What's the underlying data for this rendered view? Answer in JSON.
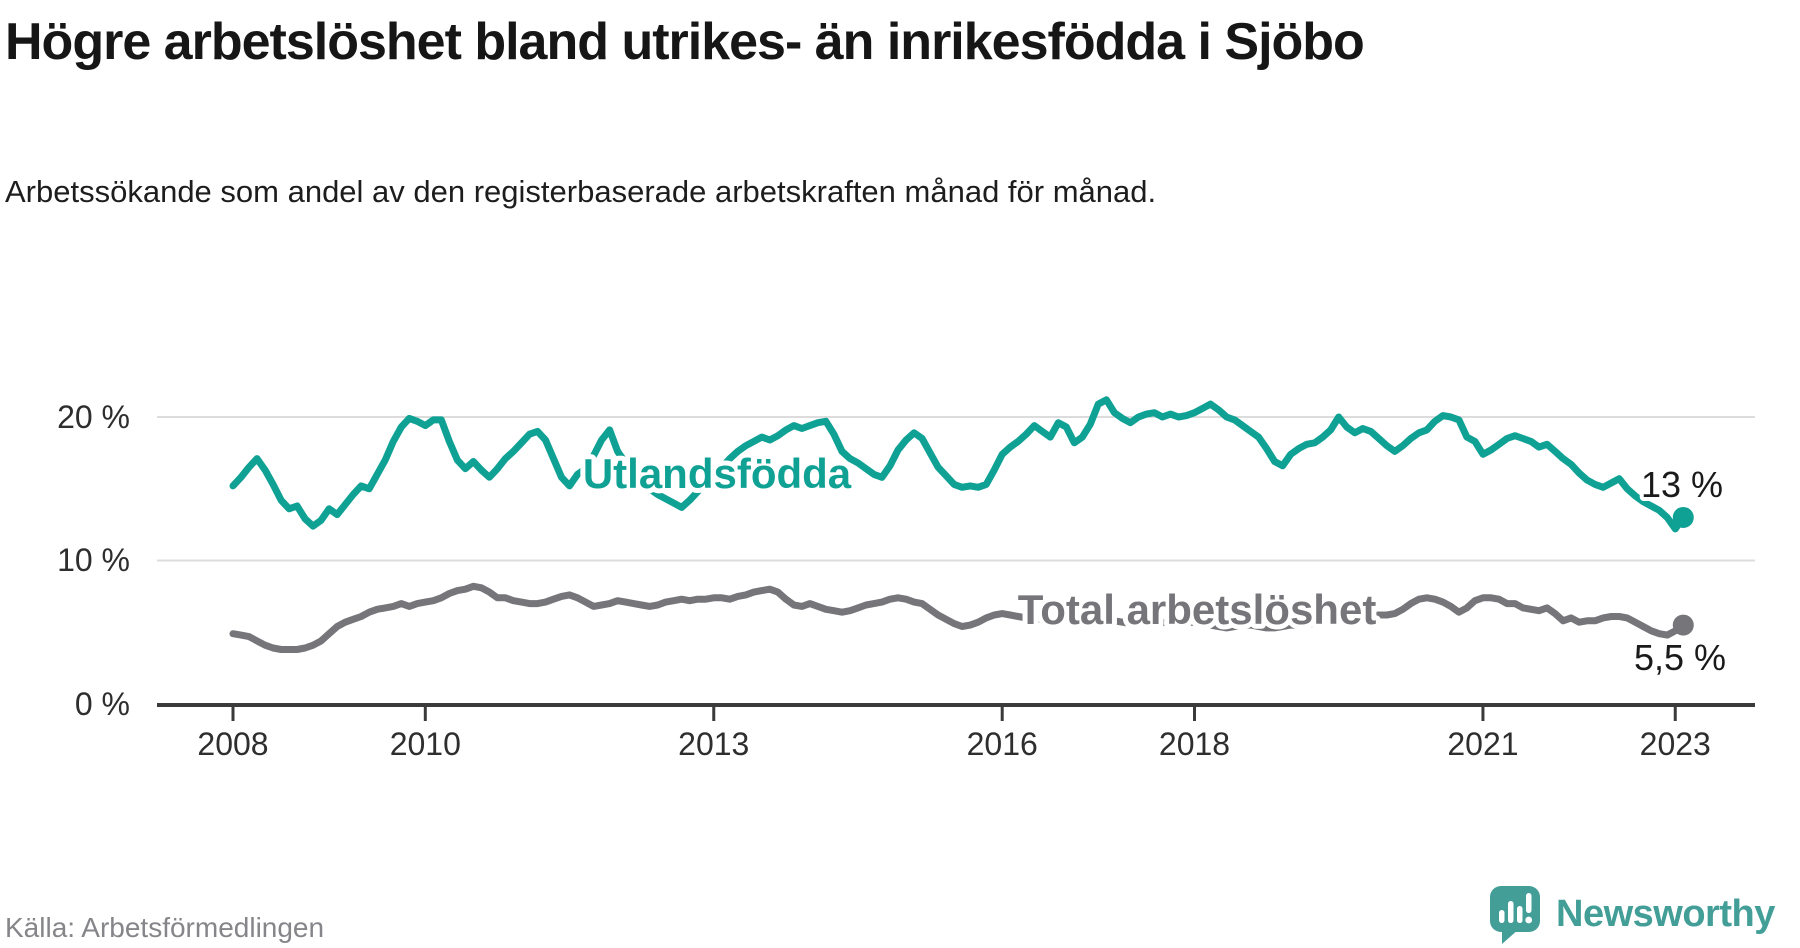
{
  "header": {
    "title": "Högre arbetslöshet bland utrikes- än inrikesfödda i Sjöbo",
    "subtitle": "Arbetssökande som andel av den registerbaserade arbetskraften månad för månad."
  },
  "chart_data": {
    "type": "line",
    "frequency": "monthly",
    "x_start": "2008-01",
    "x_end": "2023-02",
    "unit": "%",
    "grid": "horizontal",
    "legend_position": "inline-labels",
    "ylim": [
      0,
      22
    ],
    "yticks": [
      0,
      10,
      20
    ],
    "yticklabels": [
      "0 %",
      "10 %",
      "20 %"
    ],
    "xticks": [
      2008,
      2010,
      2013,
      2016,
      2018,
      2021,
      2023
    ],
    "series": [
      {
        "name": "Utlandsfödda",
        "color": "#10a195",
        "end_label": "13 %",
        "end_value": 13,
        "values": [
          15.2,
          15.8,
          16.5,
          17.1,
          16.3,
          15.3,
          14.2,
          13.6,
          13.8,
          12.9,
          12.4,
          12.8,
          13.6,
          13.2,
          13.9,
          14.6,
          15.2,
          15.0,
          16.0,
          17.0,
          18.3,
          19.3,
          19.9,
          19.7,
          19.4,
          19.8,
          19.8,
          18.3,
          17.0,
          16.4,
          16.9,
          16.3,
          15.8,
          16.4,
          17.1,
          17.6,
          18.2,
          18.8,
          19.0,
          18.4,
          17.1,
          15.8,
          15.2,
          16.0,
          16.4,
          17.3,
          18.4,
          19.1,
          17.6,
          16.8,
          16.1,
          15.5,
          15.0,
          14.6,
          14.3,
          14.0,
          13.7,
          14.2,
          14.8,
          15.4,
          15.9,
          16.5,
          17.1,
          17.6,
          18.0,
          18.3,
          18.6,
          18.4,
          18.7,
          19.1,
          19.4,
          19.2,
          19.4,
          19.6,
          19.7,
          18.8,
          17.6,
          17.1,
          16.8,
          16.4,
          16.0,
          15.8,
          16.6,
          17.7,
          18.4,
          18.9,
          18.5,
          17.5,
          16.5,
          15.9,
          15.3,
          15.1,
          15.2,
          15.1,
          15.3,
          16.3,
          17.4,
          17.9,
          18.3,
          18.8,
          19.4,
          19.0,
          18.6,
          19.6,
          19.3,
          18.2,
          18.6,
          19.5,
          20.9,
          21.2,
          20.3,
          19.9,
          19.6,
          20.0,
          20.2,
          20.3,
          20.0,
          20.2,
          20.0,
          20.1,
          20.3,
          20.6,
          20.9,
          20.5,
          20.0,
          19.8,
          19.4,
          19.0,
          18.6,
          17.8,
          16.9,
          16.6,
          17.4,
          17.8,
          18.1,
          18.2,
          18.6,
          19.1,
          20.0,
          19.3,
          18.9,
          19.2,
          19.0,
          18.5,
          18.0,
          17.6,
          18.0,
          18.5,
          18.9,
          19.1,
          19.7,
          20.1,
          20.0,
          19.8,
          18.6,
          18.3,
          17.4,
          17.7,
          18.1,
          18.5,
          18.7,
          18.5,
          18.3,
          17.9,
          18.1,
          17.6,
          17.1,
          16.7,
          16.1,
          15.6,
          15.3,
          15.1,
          15.4,
          15.7,
          15.0,
          14.5,
          14.1,
          13.8,
          13.5,
          13.0,
          12.2,
          13.0
        ]
      },
      {
        "name": "Total arbetslöshet",
        "color": "#75757a",
        "end_label": "5,5 %",
        "end_value": 5.5,
        "values": [
          4.9,
          4.8,
          4.7,
          4.4,
          4.1,
          3.9,
          3.8,
          3.8,
          3.8,
          3.9,
          4.1,
          4.4,
          4.9,
          5.4,
          5.7,
          5.9,
          6.1,
          6.4,
          6.6,
          6.7,
          6.8,
          7.0,
          6.8,
          7.0,
          7.1,
          7.2,
          7.4,
          7.7,
          7.9,
          8.0,
          8.2,
          8.1,
          7.8,
          7.4,
          7.4,
          7.2,
          7.1,
          7.0,
          7.0,
          7.1,
          7.3,
          7.5,
          7.6,
          7.4,
          7.1,
          6.8,
          6.9,
          7.0,
          7.2,
          7.1,
          7.0,
          6.9,
          6.8,
          6.9,
          7.1,
          7.2,
          7.3,
          7.2,
          7.3,
          7.3,
          7.4,
          7.4,
          7.3,
          7.5,
          7.6,
          7.8,
          7.9,
          8.0,
          7.8,
          7.3,
          6.9,
          6.8,
          7.0,
          6.8,
          6.6,
          6.5,
          6.4,
          6.5,
          6.7,
          6.9,
          7.0,
          7.1,
          7.3,
          7.4,
          7.3,
          7.1,
          7.0,
          6.6,
          6.2,
          5.9,
          5.6,
          5.4,
          5.5,
          5.7,
          6.0,
          6.2,
          6.3,
          6.2,
          6.1,
          6.0,
          5.9,
          5.9,
          6.0,
          6.0,
          5.9,
          5.8,
          5.8,
          5.9,
          5.9,
          5.9,
          5.8,
          5.7,
          5.6,
          5.7,
          5.8,
          5.8,
          5.7,
          5.6,
          5.6,
          5.7,
          5.7,
          5.6,
          5.5,
          5.4,
          5.3,
          5.4,
          5.5,
          5.5,
          5.4,
          5.3,
          5.3,
          5.4,
          5.5,
          5.5,
          5.6,
          5.6,
          5.7,
          5.8,
          6.0,
          6.0,
          5.9,
          6.0,
          6.1,
          6.2,
          6.2,
          6.3,
          6.6,
          7.0,
          7.3,
          7.4,
          7.3,
          7.1,
          6.8,
          6.4,
          6.7,
          7.2,
          7.4,
          7.4,
          7.3,
          7.0,
          7.0,
          6.7,
          6.6,
          6.5,
          6.7,
          6.3,
          5.8,
          6.0,
          5.7,
          5.8,
          5.8,
          6.0,
          6.1,
          6.1,
          6.0,
          5.7,
          5.4,
          5.1,
          4.9,
          4.8,
          5.1,
          5.5
        ]
      }
    ]
  },
  "footer": {
    "source": "Källa: Arbetsförmedlingen",
    "brand": "Newsworthy",
    "logo_icon": "bar-chart-exclamation-bubble"
  },
  "colors": {
    "accent_teal": "#10a195",
    "series_gray": "#75757a",
    "grid": "#dcdcdc",
    "axis": "#3a3a3a",
    "tick_text": "#2e2e2e",
    "text_dark": "#161616",
    "text_muted": "#85858a",
    "logo_teal": "#429e97"
  }
}
